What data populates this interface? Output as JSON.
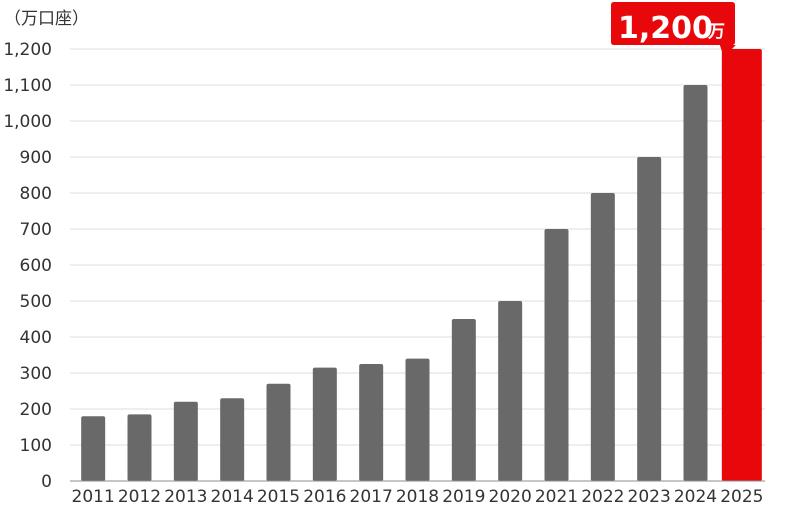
{
  "chart_data": {
    "type": "bar",
    "categories": [
      "2011",
      "2012",
      "2013",
      "2014",
      "2015",
      "2016",
      "2017",
      "2018",
      "2019",
      "2020",
      "2021",
      "2022",
      "2023",
      "2024",
      "2025"
    ],
    "values": [
      180,
      185,
      220,
      230,
      270,
      315,
      325,
      340,
      450,
      500,
      700,
      800,
      900,
      1100,
      1200
    ],
    "title": "",
    "xlabel": "",
    "ylabel": "（万口座）",
    "ylim": [
      0,
      1200
    ],
    "yticks": [
      0,
      100,
      200,
      300,
      400,
      500,
      600,
      700,
      800,
      900,
      1000,
      1100,
      1200
    ],
    "ytick_labels": [
      "0",
      "100",
      "200",
      "300",
      "400",
      "500",
      "600",
      "700",
      "800",
      "900",
      "1,000",
      "1,100",
      "1,200"
    ],
    "grid": true,
    "legend": "none",
    "colors": {
      "bar": "#696969",
      "highlight": "#e8080b"
    },
    "highlight_category": "2025",
    "annotation": {
      "value_text": "1,200",
      "unit_text": "万"
    }
  }
}
